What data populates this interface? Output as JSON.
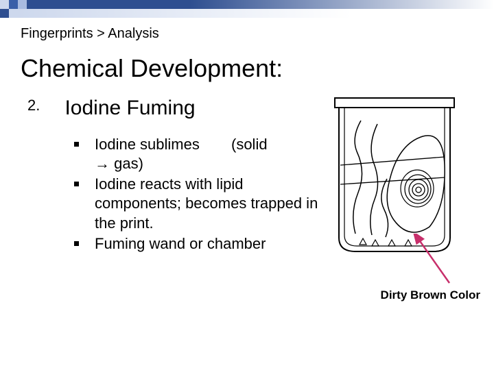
{
  "topbar": {
    "colors": {
      "dark1": "#3a5fa8",
      "dark2": "#2e4e90",
      "light1": "#cdd8ed",
      "light2": "#a9bbe0",
      "gradient_from": "#2e4e90",
      "gradient_to": "#ffffff",
      "gradient_from2": "#cdd8ed",
      "gradient_to2": "#ffffff"
    },
    "square_widths": [
      13,
      13,
      13,
      13,
      13
    ]
  },
  "breadcrumb": "Fingerprints > Analysis",
  "title": "Chemical Development:",
  "list": {
    "number": "2.",
    "heading": "Iodine Fuming",
    "items": [
      {
        "text_a": "Iodine sublimes",
        "text_b": "(solid",
        "text_c": "→ gas)"
      },
      {
        "text_a": "Iodine reacts with lipid components; becomes trapped in the print."
      },
      {
        "text_a": "Fuming wand or chamber"
      }
    ]
  },
  "figure": {
    "caption": "Dirty Brown Color",
    "arrow_color": "#c72f6b",
    "stroke": "#000000"
  }
}
